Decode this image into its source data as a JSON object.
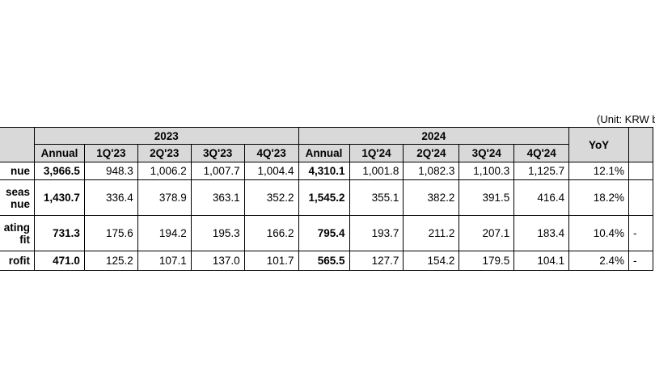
{
  "unit_note": "(Unit: KRW b",
  "header": {
    "year_2023": "2023",
    "year_2024": "2024",
    "annual_2023": "Annual",
    "annual_2024": "Annual",
    "yoy": "YoY",
    "q_2023": [
      "1Q'23",
      "2Q'23",
      "3Q'23",
      "4Q'23"
    ],
    "q_2024": [
      "1Q'24",
      "2Q'24",
      "3Q'24",
      "4Q'24"
    ]
  },
  "rows": [
    {
      "label_lines": [
        "nue"
      ],
      "annual_2023": "3,966.5",
      "q_2023": [
        "948.3",
        "1,006.2",
        "1,007.7",
        "1,004.4"
      ],
      "annual_2024": "4,310.1",
      "q_2024": [
        "1,001.8",
        "1,082.3",
        "1,100.3",
        "1,125.7"
      ],
      "yoy": "12.1%"
    },
    {
      "label_lines": [
        "seas",
        "nue"
      ],
      "annual_2023": "1,430.7",
      "q_2023": [
        "336.4",
        "378.9",
        "363.1",
        "352.2"
      ],
      "annual_2024": "1,545.2",
      "q_2024": [
        "355.1",
        "382.2",
        "391.5",
        "416.4"
      ],
      "yoy": "18.2%"
    },
    {
      "label_lines": [
        "ating",
        "fit"
      ],
      "annual_2023": "731.3",
      "q_2023": [
        "175.6",
        "194.2",
        "195.3",
        "166.2"
      ],
      "annual_2024": "795.4",
      "q_2024": [
        "193.7",
        "211.2",
        "207.1",
        "183.4"
      ],
      "yoy": "10.4%",
      "extra": "-"
    },
    {
      "label_lines": [
        "rofit"
      ],
      "annual_2023": "471.0",
      "q_2023": [
        "125.2",
        "107.1",
        "137.0",
        "101.7"
      ],
      "annual_2024": "565.5",
      "q_2024": [
        "127.7",
        "154.2",
        "179.5",
        "104.1"
      ],
      "yoy": "2.4%",
      "extra": "-"
    }
  ]
}
